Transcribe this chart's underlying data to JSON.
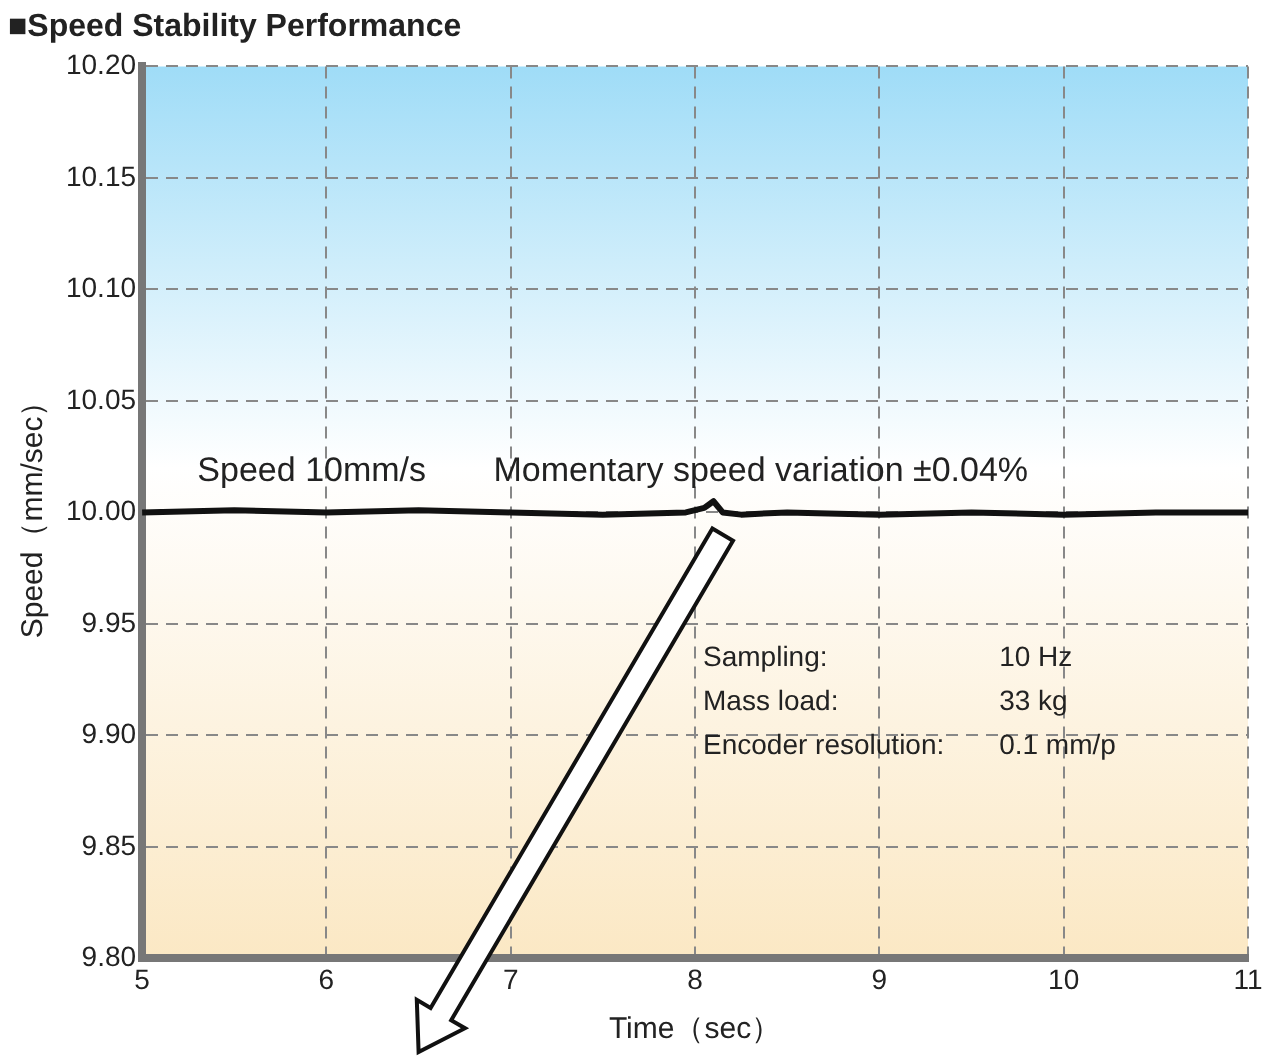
{
  "chart_data": {
    "type": "line",
    "title": "■Speed Stability Performance",
    "xlabel": "Time（sec）",
    "ylabel": "Speed（mm/sec）",
    "x": [
      5,
      5.5,
      6,
      6.5,
      7,
      7.5,
      7.95,
      8.05,
      8.1,
      8.15,
      8.25,
      8.5,
      9,
      9.5,
      10,
      10.5,
      11
    ],
    "series": [
      {
        "color": "#111111",
        "values": [
          10.0,
          10.001,
          10.0,
          10.001,
          10.0,
          9.999,
          10.0,
          10.002,
          10.005,
          10.0,
          9.999,
          10.0,
          9.999,
          10.0,
          9.999,
          10.0,
          10.0
        ]
      }
    ],
    "xlim": [
      5,
      11
    ],
    "xticks": [
      5,
      6,
      7,
      8,
      9,
      10,
      11
    ],
    "ylim": [
      9.8,
      10.2
    ],
    "yticks": [
      {
        "value": 9.8,
        "label": "9.80"
      },
      {
        "value": 9.85,
        "label": "9.85"
      },
      {
        "value": 9.9,
        "label": "9.90"
      },
      {
        "value": 9.95,
        "label": "9.95"
      },
      {
        "value": 10.0,
        "label": "10.00"
      },
      {
        "value": 10.05,
        "label": "10.05"
      },
      {
        "value": 10.1,
        "label": "10.10"
      },
      {
        "value": 10.15,
        "label": "10.15"
      },
      {
        "value": 10.2,
        "label": "10.20"
      }
    ],
    "grid": true,
    "legend": false,
    "marker": "none",
    "line_style": "solid",
    "annotations": [
      {
        "text": "Speed 10mm/s",
        "x": 5.3,
        "y": 10.0
      },
      {
        "text": "Momentary speed variation ±0.04%",
        "x": 8.1,
        "y": 10.0
      },
      "Sampling:\t10 Hz",
      "Mass load:\t33 kg",
      "Encoder resolution:\t0.1 mm/p"
    ]
  }
}
